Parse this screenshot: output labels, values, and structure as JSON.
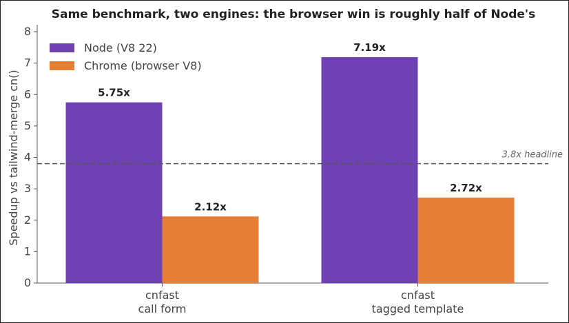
{
  "chart_data": {
    "type": "bar",
    "title": "Same benchmark, two engines: the browser win is roughly half of Node's",
    "ylabel": "Speedup vs tailwind-merge cn()",
    "xlabel": "",
    "categories": [
      [
        "cnfast",
        "call form"
      ],
      [
        "cnfast",
        "tagged template"
      ]
    ],
    "series": [
      {
        "name": "Node (V8 22)",
        "color": "#6f42b4",
        "values": [
          5.75,
          7.19
        ],
        "labels": [
          "5.75x",
          "7.19x"
        ]
      },
      {
        "name": "Chrome (browser V8)",
        "color": "#e67e35",
        "values": [
          2.12,
          2.72
        ],
        "labels": [
          "2.12x",
          "2.72x"
        ]
      }
    ],
    "ylim": [
      0,
      8
    ],
    "yticks": [
      0,
      1,
      2,
      3,
      4,
      5,
      6,
      7,
      8
    ],
    "reference_line": {
      "value": 3.8,
      "label": "3.8x headline",
      "style": "dashed",
      "color": "#555555"
    },
    "legend_position": "top-left",
    "grid": false
  }
}
